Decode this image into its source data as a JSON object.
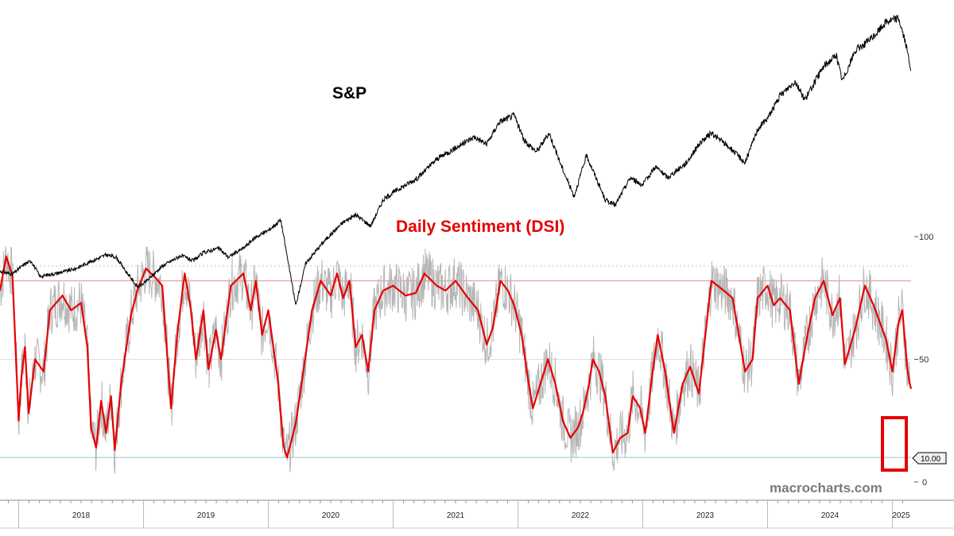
{
  "watermark": "macrocharts.com",
  "colors": {
    "dsi": "#e60000",
    "dsi_raw": "#b5b5b5",
    "sp": "#000000",
    "upper_band": "#f2a0a0",
    "lower_band": "#a8d4d4",
    "highlight": "#e60000"
  },
  "chart_data": {
    "type": "line",
    "title_sp": "S&P",
    "title_dsi": "Daily Sentiment (DSI)",
    "x_categories": [
      "2018",
      "2019",
      "2020",
      "2021",
      "2022",
      "2023",
      "2024",
      "2025"
    ],
    "x_range": [
      2017.85,
      2025.15
    ],
    "y_right": {
      "ticks": [
        0,
        50,
        100
      ],
      "ylim": [
        0,
        100
      ]
    },
    "reference_lines": [
      {
        "value": 82,
        "style": "solid",
        "color": "#f2a0a0"
      },
      {
        "value": 88,
        "style": "dotted",
        "color": "#cccccc"
      },
      {
        "value": 10,
        "style": "solid",
        "color": "#a8d4d4"
      }
    ],
    "current_label": "10.00",
    "grid": true,
    "series": [
      {
        "name": "S&P",
        "points": [
          [
            2017.85,
            2690
          ],
          [
            2017.95,
            2650
          ],
          [
            2018.05,
            2790
          ],
          [
            2018.1,
            2830
          ],
          [
            2018.17,
            2620
          ],
          [
            2018.3,
            2660
          ],
          [
            2018.45,
            2720
          ],
          [
            2018.55,
            2800
          ],
          [
            2018.7,
            2910
          ],
          [
            2018.78,
            2880
          ],
          [
            2018.85,
            2710
          ],
          [
            2018.95,
            2480
          ],
          [
            2019.0,
            2520
          ],
          [
            2019.15,
            2760
          ],
          [
            2019.3,
            2900
          ],
          [
            2019.4,
            2830
          ],
          [
            2019.48,
            2940
          ],
          [
            2019.6,
            3000
          ],
          [
            2019.68,
            2880
          ],
          [
            2019.8,
            3000
          ],
          [
            2019.9,
            3150
          ],
          [
            2020.0,
            3240
          ],
          [
            2020.1,
            3380
          ],
          [
            2020.15,
            2900
          ],
          [
            2020.22,
            2230
          ],
          [
            2020.3,
            2800
          ],
          [
            2020.45,
            3100
          ],
          [
            2020.6,
            3350
          ],
          [
            2020.7,
            3450
          ],
          [
            2020.82,
            3300
          ],
          [
            2020.92,
            3650
          ],
          [
            2021.0,
            3750
          ],
          [
            2021.2,
            3950
          ],
          [
            2021.35,
            4200
          ],
          [
            2021.5,
            4350
          ],
          [
            2021.65,
            4500
          ],
          [
            2021.75,
            4400
          ],
          [
            2021.85,
            4700
          ],
          [
            2021.97,
            4790
          ],
          [
            2022.05,
            4450
          ],
          [
            2022.15,
            4300
          ],
          [
            2022.25,
            4550
          ],
          [
            2022.35,
            4100
          ],
          [
            2022.45,
            3700
          ],
          [
            2022.55,
            4250
          ],
          [
            2022.7,
            3650
          ],
          [
            2022.78,
            3580
          ],
          [
            2022.9,
            3950
          ],
          [
            2023.0,
            3850
          ],
          [
            2023.1,
            4100
          ],
          [
            2023.2,
            3950
          ],
          [
            2023.35,
            4150
          ],
          [
            2023.45,
            4400
          ],
          [
            2023.55,
            4550
          ],
          [
            2023.7,
            4350
          ],
          [
            2023.82,
            4150
          ],
          [
            2023.92,
            4600
          ],
          [
            2024.0,
            4750
          ],
          [
            2024.1,
            5050
          ],
          [
            2024.22,
            5250
          ],
          [
            2024.3,
            5000
          ],
          [
            2024.45,
            5450
          ],
          [
            2024.55,
            5600
          ],
          [
            2024.6,
            5250
          ],
          [
            2024.7,
            5650
          ],
          [
            2024.85,
            5850
          ],
          [
            2024.95,
            6050
          ],
          [
            2025.05,
            6100
          ],
          [
            2025.1,
            5800
          ],
          [
            2025.15,
            5400
          ]
        ]
      },
      {
        "name": "Daily Sentiment (DSI)",
        "points": [
          [
            2017.85,
            78
          ],
          [
            2017.9,
            92
          ],
          [
            2017.95,
            84
          ],
          [
            2018.0,
            25
          ],
          [
            2018.02,
            42
          ],
          [
            2018.05,
            55
          ],
          [
            2018.08,
            28
          ],
          [
            2018.13,
            50
          ],
          [
            2018.2,
            45
          ],
          [
            2018.25,
            70
          ],
          [
            2018.35,
            76
          ],
          [
            2018.42,
            70
          ],
          [
            2018.5,
            73
          ],
          [
            2018.55,
            55
          ],
          [
            2018.58,
            22
          ],
          [
            2018.62,
            14
          ],
          [
            2018.66,
            33
          ],
          [
            2018.7,
            20
          ],
          [
            2018.74,
            35
          ],
          [
            2018.77,
            13
          ],
          [
            2018.82,
            40
          ],
          [
            2018.9,
            68
          ],
          [
            2018.95,
            78
          ],
          [
            2019.02,
            87
          ],
          [
            2019.1,
            83
          ],
          [
            2019.15,
            80
          ],
          [
            2019.22,
            30
          ],
          [
            2019.27,
            60
          ],
          [
            2019.33,
            85
          ],
          [
            2019.38,
            70
          ],
          [
            2019.42,
            50
          ],
          [
            2019.48,
            70
          ],
          [
            2019.52,
            46
          ],
          [
            2019.58,
            62
          ],
          [
            2019.62,
            50
          ],
          [
            2019.7,
            80
          ],
          [
            2019.8,
            85
          ],
          [
            2019.86,
            70
          ],
          [
            2019.9,
            82
          ],
          [
            2019.95,
            60
          ],
          [
            2020.0,
            70
          ],
          [
            2020.08,
            40
          ],
          [
            2020.12,
            15
          ],
          [
            2020.15,
            10
          ],
          [
            2020.22,
            24
          ],
          [
            2020.28,
            45
          ],
          [
            2020.35,
            70
          ],
          [
            2020.42,
            82
          ],
          [
            2020.5,
            76
          ],
          [
            2020.55,
            85
          ],
          [
            2020.6,
            75
          ],
          [
            2020.65,
            82
          ],
          [
            2020.7,
            55
          ],
          [
            2020.75,
            60
          ],
          [
            2020.8,
            45
          ],
          [
            2020.85,
            70
          ],
          [
            2020.92,
            78
          ],
          [
            2021.0,
            80
          ],
          [
            2021.1,
            76
          ],
          [
            2021.18,
            77
          ],
          [
            2021.25,
            85
          ],
          [
            2021.35,
            80
          ],
          [
            2021.42,
            78
          ],
          [
            2021.5,
            82
          ],
          [
            2021.6,
            75
          ],
          [
            2021.68,
            70
          ],
          [
            2021.75,
            56
          ],
          [
            2021.8,
            63
          ],
          [
            2021.86,
            82
          ],
          [
            2021.92,
            78
          ],
          [
            2021.97,
            72
          ],
          [
            2022.03,
            60
          ],
          [
            2022.08,
            42
          ],
          [
            2022.12,
            30
          ],
          [
            2022.18,
            40
          ],
          [
            2022.24,
            50
          ],
          [
            2022.3,
            40
          ],
          [
            2022.36,
            25
          ],
          [
            2022.42,
            18
          ],
          [
            2022.48,
            22
          ],
          [
            2022.52,
            28
          ],
          [
            2022.57,
            40
          ],
          [
            2022.6,
            50
          ],
          [
            2022.65,
            45
          ],
          [
            2022.7,
            35
          ],
          [
            2022.76,
            12
          ],
          [
            2022.82,
            18
          ],
          [
            2022.88,
            20
          ],
          [
            2022.92,
            35
          ],
          [
            2022.98,
            30
          ],
          [
            2023.02,
            20
          ],
          [
            2023.08,
            45
          ],
          [
            2023.12,
            60
          ],
          [
            2023.18,
            45
          ],
          [
            2023.25,
            20
          ],
          [
            2023.32,
            40
          ],
          [
            2023.38,
            47
          ],
          [
            2023.45,
            36
          ],
          [
            2023.55,
            82
          ],
          [
            2023.65,
            78
          ],
          [
            2023.72,
            75
          ],
          [
            2023.82,
            45
          ],
          [
            2023.88,
            50
          ],
          [
            2023.92,
            75
          ],
          [
            2024.0,
            80
          ],
          [
            2024.05,
            72
          ],
          [
            2024.1,
            75
          ],
          [
            2024.18,
            70
          ],
          [
            2024.25,
            40
          ],
          [
            2024.32,
            60
          ],
          [
            2024.38,
            75
          ],
          [
            2024.45,
            82
          ],
          [
            2024.52,
            68
          ],
          [
            2024.58,
            75
          ],
          [
            2024.62,
            48
          ],
          [
            2024.7,
            62
          ],
          [
            2024.78,
            80
          ],
          [
            2024.85,
            72
          ],
          [
            2024.9,
            65
          ],
          [
            2024.95,
            58
          ],
          [
            2025.0,
            45
          ],
          [
            2025.05,
            65
          ],
          [
            2025.08,
            70
          ],
          [
            2025.12,
            46
          ],
          [
            2025.14,
            40
          ],
          [
            2025.15,
            38
          ]
        ]
      }
    ]
  }
}
